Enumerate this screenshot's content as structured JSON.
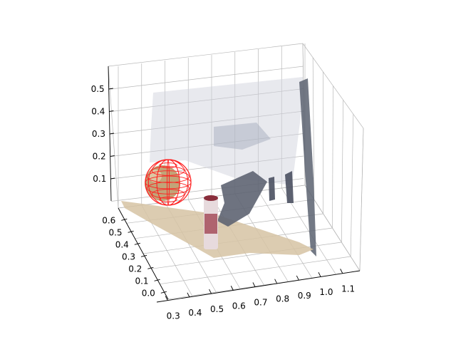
{
  "chart_data": {
    "type": "scatter",
    "projection": "3d",
    "title": "",
    "xlabel": "",
    "ylabel": "",
    "zlabel": "",
    "x_ticks": [
      "0.3",
      "0.4",
      "0.5",
      "0.6",
      "0.7",
      "0.8",
      "0.9",
      "1.0",
      "1.1"
    ],
    "y_ticks": [
      "0.0",
      "0.1",
      "0.2",
      "0.3",
      "0.4",
      "0.5",
      "0.6"
    ],
    "z_ticks": [
      "0.1",
      "0.2",
      "0.3",
      "0.4",
      "0.5"
    ],
    "xlim": [
      0.28,
      1.12
    ],
    "ylim": [
      -0.05,
      0.67
    ],
    "zlim": [
      0.02,
      0.58
    ],
    "grid": true,
    "series": [
      {
        "kind": "point-cloud",
        "description_color": "#c9b493",
        "regions": [
          {
            "part": "table-surface",
            "color": "#d2bfa0"
          },
          {
            "part": "back-wall",
            "color": "#c4c7d2"
          },
          {
            "part": "right-wall",
            "color": "#5b6170"
          },
          {
            "part": "chair",
            "color": "#5e6472"
          },
          {
            "part": "ball",
            "color": "#b89a6e"
          },
          {
            "part": "can",
            "color": "#9c3b4a"
          }
        ]
      },
      {
        "kind": "wireframe-sphere",
        "color": "#ff2020",
        "center": [
          0.35,
          0.45,
          0.15
        ],
        "radius": 0.065
      }
    ]
  }
}
